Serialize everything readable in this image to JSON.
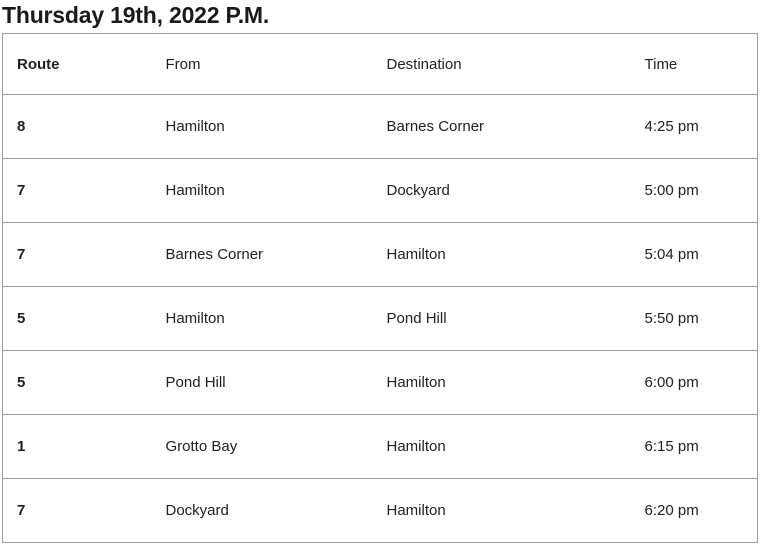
{
  "page": {
    "title": "Thursday 19th, 2022 P.M."
  },
  "schedule_table": {
    "headers": {
      "route": "Route",
      "from": "From",
      "destination": "Destination",
      "time": "Time"
    },
    "rows": [
      {
        "route": "8",
        "from": "Hamilton",
        "destination": "Barnes Corner",
        "time": "4:25 pm"
      },
      {
        "route": "7",
        "from": "Hamilton",
        "destination": "Dockyard",
        "time": "5:00 pm"
      },
      {
        "route": "7",
        "from": "Barnes Corner",
        "destination": "Hamilton",
        "time": "5:04 pm"
      },
      {
        "route": "5",
        "from": "Hamilton",
        "destination": "Pond Hill",
        "time": "5:50 pm"
      },
      {
        "route": "5",
        "from": "Pond Hill",
        "destination": "Hamilton",
        "time": "6:00 pm"
      },
      {
        "route": "1",
        "from": "Grotto Bay",
        "destination": "Hamilton",
        "time": "6:15 pm"
      },
      {
        "route": "7",
        "from": "Dockyard",
        "destination": "Hamilton",
        "time": "6:20 pm"
      }
    ]
  },
  "colors": {
    "border": "#9e9e9e",
    "title_text": "#1a1a1a",
    "cell_text": "#212121",
    "background": "#ffffff"
  }
}
